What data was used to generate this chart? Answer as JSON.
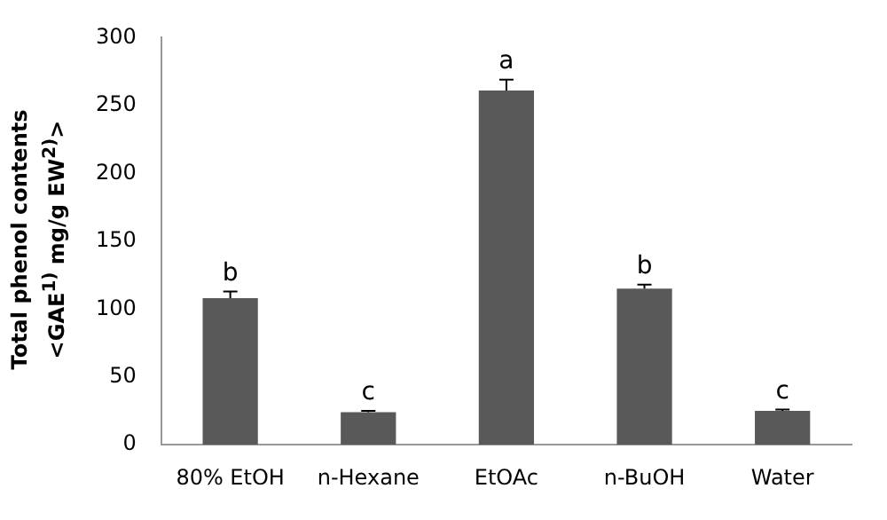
{
  "chart_data": {
    "type": "bar",
    "ylabel": "Total phenol contents\n<GAE$^{1)}$  mg/g EW$^{2)}$>",
    "categories": [
      "80% EtOH",
      "n-Hexane",
      "EtOAc",
      "n-BuOH",
      "Water"
    ],
    "values": [
      108,
      24,
      261,
      115,
      25
    ],
    "errors": [
      [
        108,
        113
      ],
      [
        24,
        25
      ],
      [
        261,
        269
      ],
      [
        115,
        118
      ],
      [
        25,
        26
      ]
    ],
    "color": "#595959",
    "ylim": [
      0,
      300
    ],
    "yticks": [
      0,
      50,
      100,
      150,
      200,
      250,
      300
    ],
    "grid": false,
    "legend": false,
    "annotations": [
      {
        "text": "b",
        "x": "80% EtOH",
        "y": 113
      },
      {
        "text": "c",
        "x": "n-Hexane",
        "y": 25
      },
      {
        "text": "a",
        "x": "EtOAc",
        "y": 269
      },
      {
        "text": "b",
        "x": "n-BuOH",
        "y": 118
      },
      {
        "text": "c",
        "x": "Water",
        "y": 26
      }
    ]
  }
}
